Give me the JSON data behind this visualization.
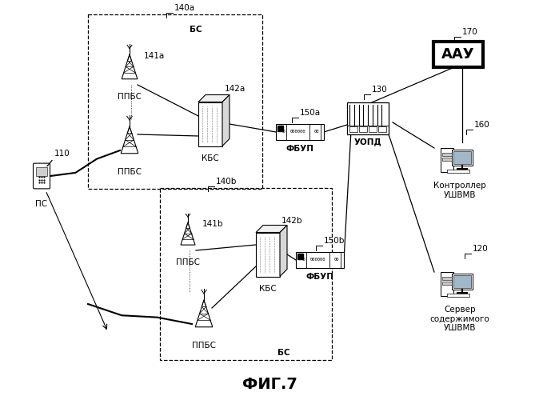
{
  "title": "ФИГ.7",
  "bg_color": "#ffffff",
  "line_color": "#000000",
  "fig_width": 6.74,
  "fig_height": 5.0,
  "dpi": 100,
  "labels": {
    "PS": "ПС",
    "PS_num": "110",
    "BS_a": "БС",
    "BS_b": "БС",
    "PPBS_a1": "ППБС",
    "PPBS_a2": "ППБС",
    "PPBS_b1": "ППБС",
    "PPBS_b2": "ППБС",
    "KBS_a": "КБС",
    "KBS_b": "КБС",
    "FBUP_a": "ФБУП",
    "FBUP_b": "ФБУП",
    "UOPD": "УОПД",
    "AAU": "ААУ",
    "Controller": "Контроллер\nУШВМВ",
    "Server": "Сервер\nсодержимого\nУШВМВ",
    "num_140a": "140a",
    "num_140b": "140b",
    "num_141a": "141a",
    "num_141b": "141b",
    "num_142a": "142a",
    "num_142b": "142b",
    "num_150a": "150a",
    "num_150b": "150b",
    "num_130": "130",
    "num_160": "160",
    "num_120": "120",
    "num_170": "170"
  }
}
